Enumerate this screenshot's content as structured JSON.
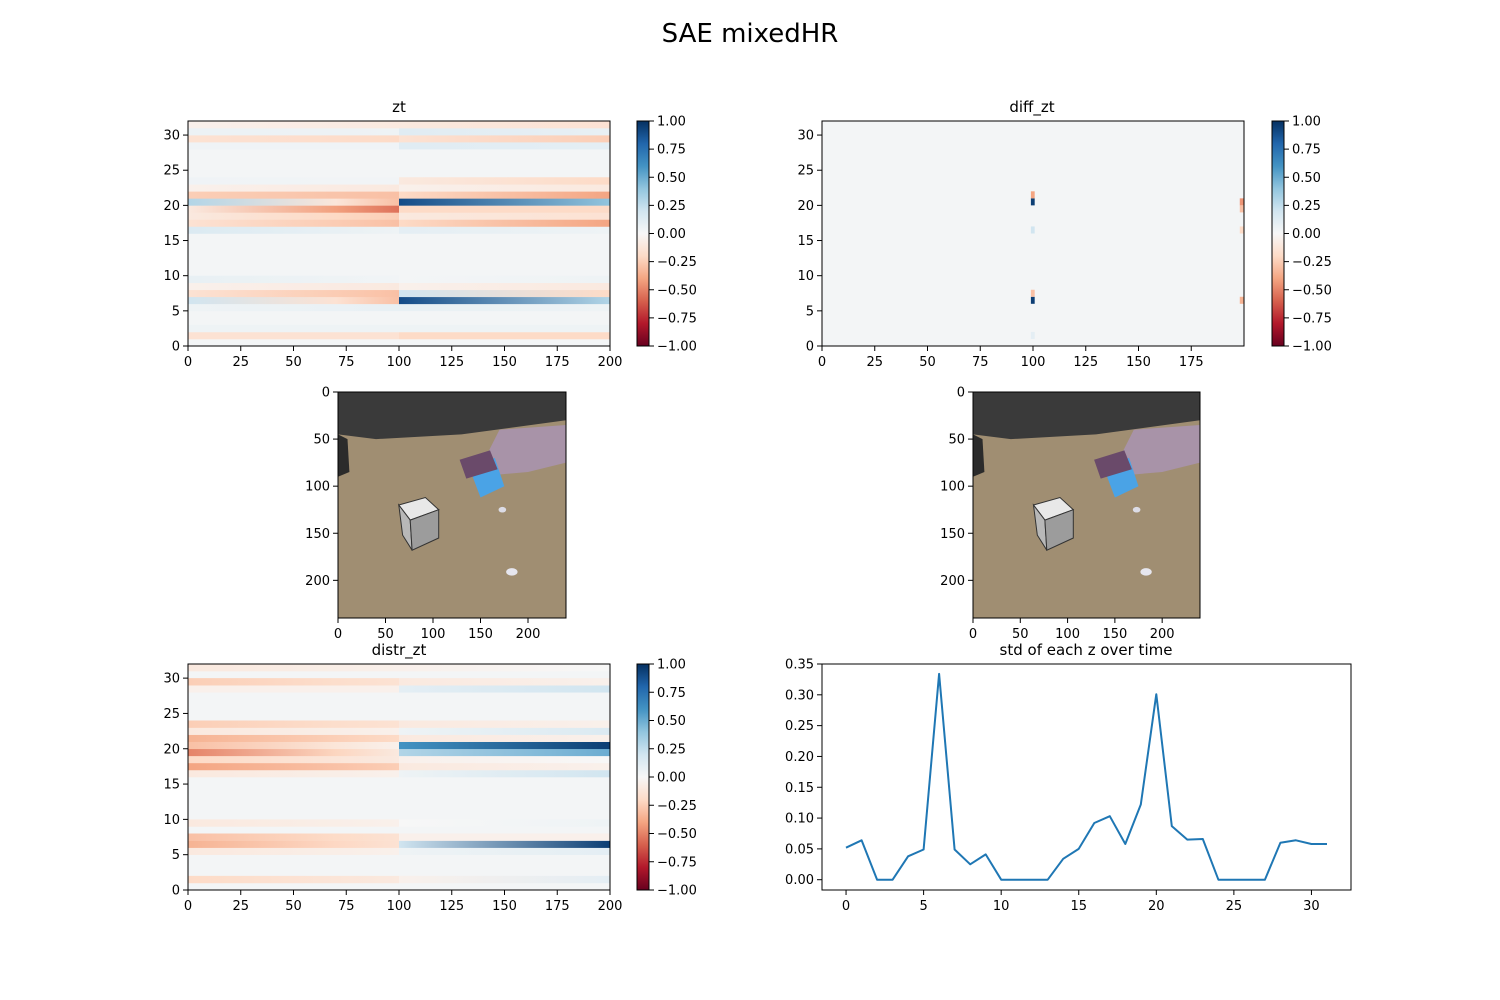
{
  "figure": {
    "title": "SAE mixedHR"
  },
  "colors": {
    "rdbu": [
      "#67001f",
      "#b2182b",
      "#d6604d",
      "#f4a582",
      "#fddbc7",
      "#f7f7f7",
      "#d1e5f0",
      "#92c5de",
      "#4393c3",
      "#2166ac",
      "#053061"
    ],
    "line": "#1f77b4",
    "desk": "#a08e72",
    "background_dark": "#3a3a3a",
    "hand": "#a893a8"
  },
  "chart_data": [
    {
      "id": "zt",
      "type": "heatmap",
      "title": "zt",
      "colormap": "RdBu",
      "xlim": [
        0,
        200
      ],
      "ylim": [
        0,
        32
      ],
      "xticks": [
        0,
        25,
        50,
        75,
        100,
        125,
        150,
        175,
        200
      ],
      "yticks": [
        0,
        5,
        10,
        15,
        20,
        25,
        30
      ],
      "colorbar": {
        "range": [
          -1,
          1
        ],
        "ticks": [
          "1.00",
          "0.75",
          "0.50",
          "0.25",
          "0.00",
          "−0.25",
          "−0.50",
          "−0.75",
          "−1.00"
        ]
      },
      "rows": [
        {
          "z": 1,
          "a": -0.15,
          "b": -0.15,
          "c": -0.2,
          "d": -0.2
        },
        {
          "z": 2,
          "a": 0.05,
          "b": 0.05,
          "c": 0.05,
          "d": 0.05
        },
        {
          "z": 5,
          "a": 0.05,
          "b": 0.08,
          "c": 0.08,
          "d": 0.05
        },
        {
          "z": 6,
          "a": 0.2,
          "b": -0.3,
          "c": 0.9,
          "d": 0.3
        },
        {
          "z": 7,
          "a": -0.15,
          "b": -0.3,
          "c": 0.2,
          "d": -0.2
        },
        {
          "z": 8,
          "a": -0.05,
          "b": -0.1,
          "c": -0.05,
          "d": -0.1
        },
        {
          "z": 9,
          "a": 0.08,
          "b": 0.03,
          "c": 0.02,
          "d": 0.05
        },
        {
          "z": 16,
          "a": 0.15,
          "b": 0.05,
          "c": 0.1,
          "d": 0.05
        },
        {
          "z": 17,
          "a": -0.15,
          "b": -0.3,
          "c": -0.2,
          "d": -0.4
        },
        {
          "z": 18,
          "a": -0.1,
          "b": -0.25,
          "c": -0.1,
          "d": -0.15
        },
        {
          "z": 19,
          "a": -0.1,
          "b": -0.55,
          "c": -0.2,
          "d": -0.2
        },
        {
          "z": 20,
          "a": 0.3,
          "b": -0.3,
          "c": 0.9,
          "d": 0.4
        },
        {
          "z": 21,
          "a": -0.25,
          "b": -0.3,
          "c": -0.2,
          "d": -0.4
        },
        {
          "z": 22,
          "a": -0.05,
          "b": -0.1,
          "c": -0.05,
          "d": -0.1
        },
        {
          "z": 23,
          "a": 0.04,
          "b": 0.03,
          "c": -0.1,
          "d": -0.2
        },
        {
          "z": 28,
          "a": 0.04,
          "b": 0.04,
          "c": 0.12,
          "d": 0.1
        },
        {
          "z": 29,
          "a": -0.15,
          "b": -0.2,
          "c": -0.15,
          "d": -0.25
        },
        {
          "z": 30,
          "a": 0.06,
          "b": 0.05,
          "c": 0.12,
          "d": 0.08
        },
        {
          "z": 31,
          "a": -0.05,
          "b": -0.1,
          "c": -0.1,
          "d": -0.15
        }
      ]
    },
    {
      "id": "diff_zt",
      "type": "heatmap",
      "title": "diff_zt",
      "colormap": "RdBu",
      "xlim": [
        0,
        199
      ],
      "ylim": [
        0,
        32
      ],
      "xticks": [
        0,
        25,
        50,
        75,
        100,
        125,
        150,
        175
      ],
      "yticks": [
        0,
        5,
        10,
        15,
        20,
        25,
        30
      ],
      "colorbar": {
        "range": [
          -1,
          1
        ],
        "ticks": [
          "1.00",
          "0.75",
          "0.50",
          "0.25",
          "0.00",
          "−0.25",
          "−0.50",
          "−0.75",
          "−1.00"
        ]
      },
      "spikes": [
        {
          "x": 99,
          "z": 20,
          "v": 0.95
        },
        {
          "x": 99,
          "z": 21,
          "v": -0.4
        },
        {
          "x": 99,
          "z": 6,
          "v": 0.95
        },
        {
          "x": 99,
          "z": 7,
          "v": -0.3
        },
        {
          "x": 99,
          "z": 16,
          "v": 0.2
        },
        {
          "x": 99,
          "z": 1,
          "v": 0.1
        },
        {
          "x": 198,
          "z": 20,
          "v": -0.45
        },
        {
          "x": 198,
          "z": 19,
          "v": -0.3
        },
        {
          "x": 198,
          "z": 6,
          "v": -0.35
        },
        {
          "x": 198,
          "z": 16,
          "v": -0.2
        }
      ]
    },
    {
      "id": "frame_left",
      "type": "image",
      "xlim": [
        0,
        240
      ],
      "ylim": [
        240,
        0
      ],
      "xticks": [
        0,
        50,
        100,
        150,
        200
      ],
      "yticks": [
        0,
        50,
        100,
        150,
        200
      ]
    },
    {
      "id": "frame_right",
      "type": "image",
      "xlim": [
        0,
        240
      ],
      "ylim": [
        240,
        0
      ],
      "xticks": [
        0,
        50,
        100,
        150,
        200
      ],
      "yticks": [
        0,
        50,
        100,
        150,
        200
      ]
    },
    {
      "id": "distr_zt",
      "type": "heatmap",
      "title": "distr_zt",
      "colormap": "RdBu",
      "xlim": [
        0,
        200
      ],
      "ylim": [
        0,
        32
      ],
      "xticks": [
        0,
        25,
        50,
        75,
        100,
        125,
        150,
        175,
        200
      ],
      "yticks": [
        0,
        5,
        10,
        15,
        20,
        25,
        30
      ],
      "colorbar": {
        "range": [
          -1,
          1
        ],
        "ticks": [
          "1.00",
          "0.75",
          "0.50",
          "0.25",
          "0.00",
          "−0.25",
          "−0.50",
          "−0.75",
          "−1.00"
        ]
      },
      "rows": [
        {
          "z": 1,
          "a": -0.2,
          "b": -0.1,
          "c": -0.05,
          "d": 0.1
        },
        {
          "z": 5,
          "a": -0.1,
          "b": -0.05,
          "c": 0.05,
          "d": 0.1
        },
        {
          "z": 6,
          "a": -0.35,
          "b": -0.15,
          "c": 0.2,
          "d": 0.95
        },
        {
          "z": 7,
          "a": -0.3,
          "b": -0.15,
          "c": -0.05,
          "d": -0.05
        },
        {
          "z": 9,
          "a": -0.1,
          "b": -0.05,
          "c": 0,
          "d": 0.05
        },
        {
          "z": 16,
          "a": -0.1,
          "b": -0.05,
          "c": 0.05,
          "d": 0.2
        },
        {
          "z": 17,
          "a": -0.4,
          "b": -0.25,
          "c": -0.1,
          "d": -0.05
        },
        {
          "z": 18,
          "a": -0.2,
          "b": -0.1,
          "c": -0.05,
          "d": 0
        },
        {
          "z": 19,
          "a": -0.5,
          "b": -0.1,
          "c": 0.3,
          "d": 0.5
        },
        {
          "z": 20,
          "a": -0.3,
          "b": -0.05,
          "c": 0.6,
          "d": 0.95
        },
        {
          "z": 21,
          "a": -0.35,
          "b": -0.2,
          "c": -0.1,
          "d": -0.05
        },
        {
          "z": 22,
          "a": -0.1,
          "b": -0.05,
          "c": 0.05,
          "d": 0.15
        },
        {
          "z": 23,
          "a": -0.25,
          "b": -0.15,
          "c": -0.1,
          "d": -0.05
        },
        {
          "z": 28,
          "a": -0.05,
          "b": -0.05,
          "c": 0.1,
          "d": 0.2
        },
        {
          "z": 29,
          "a": -0.25,
          "b": -0.15,
          "c": -0.1,
          "d": -0.05
        },
        {
          "z": 31,
          "a": -0.1,
          "b": -0.05,
          "c": -0.05,
          "d": 0
        }
      ]
    },
    {
      "id": "std",
      "type": "line",
      "title": "std of each z over time",
      "xlim": [
        -1.55,
        32.55
      ],
      "ylim": [
        -0.0167,
        0.35
      ],
      "xticks": [
        0,
        5,
        10,
        15,
        20,
        25,
        30
      ],
      "yticks": [
        "0.00",
        "0.05",
        "0.10",
        "0.15",
        "0.20",
        "0.25",
        "0.30",
        "0.35"
      ],
      "x": [
        0,
        1,
        2,
        3,
        4,
        5,
        6,
        7,
        8,
        9,
        10,
        11,
        12,
        13,
        14,
        15,
        16,
        17,
        18,
        19,
        20,
        21,
        22,
        23,
        24,
        25,
        26,
        27,
        28,
        29,
        30,
        31
      ],
      "y": [
        0.052,
        0.064,
        0.0,
        0.0,
        0.038,
        0.049,
        0.334,
        0.049,
        0.025,
        0.041,
        0.0,
        0.0,
        0.0,
        0.0,
        0.034,
        0.05,
        0.092,
        0.103,
        0.058,
        0.122,
        0.301,
        0.087,
        0.065,
        0.066,
        0.0,
        0.0,
        0.0,
        0.0,
        0.06,
        0.064,
        0.058,
        0.058
      ]
    }
  ]
}
